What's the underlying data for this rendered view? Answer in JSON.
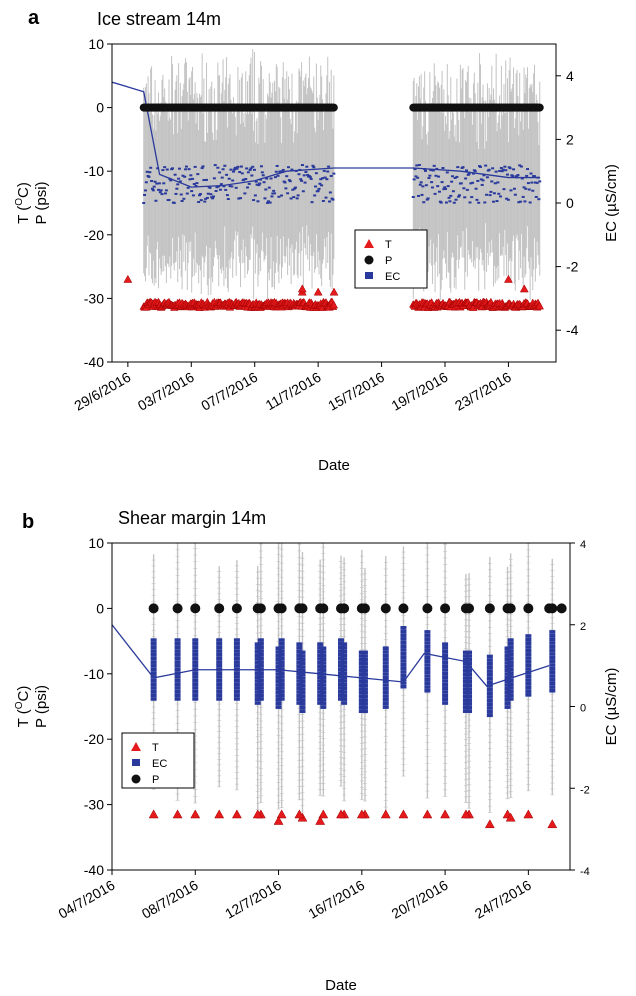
{
  "chart_data": [
    {
      "panel": "a",
      "title": "Ice stream 14m",
      "type": "scatter",
      "xlabel": "Date",
      "ylabel_line1": "T (°C)",
      "ylabel_line2": "P (psi)",
      "ylabel_t_main": "T (",
      "ylabel_t_sup": "O",
      "ylabel_t_end": "C)",
      "y2label": "EC (µS/cm)",
      "ylim": [
        -40,
        10
      ],
      "y2lim": [
        -5,
        5
      ],
      "yticks": [
        "10",
        "0",
        "-10",
        "-20",
        "-30",
        "-40"
      ],
      "y2ticks": [
        "4",
        "2",
        "0",
        "-2",
        "-4"
      ],
      "xticks": [
        "29/6/2016",
        "03/7/2016",
        "07/7/2016",
        "11/7/2016",
        "15/7/2016",
        "19/7/2016",
        "23/7/2016"
      ],
      "xrange": [
        "28/6/2016",
        "26/7/2016"
      ],
      "legend_position": "center-right",
      "legend": [
        {
          "label": "T",
          "marker": "triangle",
          "color": "#e41a1c"
        },
        {
          "label": "P",
          "marker": "circle",
          "color": "#111111"
        },
        {
          "label": "EC",
          "marker": "square",
          "color": "#2a3a9c"
        }
      ],
      "colors": {
        "T": "#e41a1c",
        "P": "#111111",
        "EC": "#2a3a9c",
        "error_bars": "#c3c3c3",
        "trend": "#2a3a9c"
      },
      "segments": [
        {
          "start": "30/6/2016",
          "end": "12/7/2016",
          "T": -31.0,
          "P": 0,
          "EC_mean": 0.6
        },
        {
          "start": "17/7/2016",
          "end": "25/7/2016",
          "T": -31.0,
          "P": 0,
          "EC_mean": 0.6
        }
      ],
      "ec_trend": {
        "x": [
          "28/6/2016",
          "30/6/2016",
          "1/7/2016",
          "3/7/2016",
          "5/7/2016",
          "7/7/2016",
          "9/7/2016",
          "12/7/2016",
          "17/7/2016",
          "20/7/2016",
          "23/7/2016",
          "25/7/2016"
        ],
        "y": [
          3.8,
          3.5,
          0.9,
          0.5,
          0.55,
          0.7,
          1.0,
          1.1,
          1.1,
          1.0,
          0.8,
          0.8
        ]
      },
      "T_outliers": [
        {
          "x": "29/6/2016",
          "y": -27
        },
        {
          "x": "10/7/2016",
          "y": -29
        },
        {
          "x": "10/7/2016",
          "y": -28.5
        },
        {
          "x": "11/7/2016",
          "y": -29
        },
        {
          "x": "12/7/2016",
          "y": -29
        },
        {
          "x": "23/7/2016",
          "y": -27
        },
        {
          "x": "24/7/2016",
          "y": -28.5
        }
      ]
    },
    {
      "panel": "b",
      "title": "Shear margin 14m",
      "type": "scatter",
      "xlabel": "Date",
      "ylabel_line1": "T (°C)",
      "ylabel_line2": "P (psi)",
      "ylabel_t_main": "T (",
      "ylabel_t_sup": "O",
      "ylabel_t_end": "C)",
      "y2label": "EC (µS/cm)",
      "ylim": [
        -40,
        10
      ],
      "y2lim": [
        -4,
        4
      ],
      "yticks": [
        "10",
        "0",
        "-10",
        "-20",
        "-30",
        "-40"
      ],
      "y2ticks": [
        "4",
        "2",
        "0",
        "-2",
        "-4"
      ],
      "xticks": [
        "04/7/2016",
        "08/7/2016",
        "12/7/2016",
        "16/7/2016",
        "20/7/2016",
        "24/7/2016"
      ],
      "xrange": [
        "4/7/2016",
        "26/7/2016"
      ],
      "legend_position": "left",
      "legend": [
        {
          "label": "T",
          "marker": "triangle",
          "color": "#e41a1c"
        },
        {
          "label": "EC",
          "marker": "square",
          "color": "#2a3a9c"
        },
        {
          "label": "P",
          "marker": "circle",
          "color": "#111111"
        }
      ],
      "colors": {
        "T": "#e41a1c",
        "P": "#111111",
        "EC": "#2a3a9c",
        "error_bars": "#c3c3c3",
        "trend": "#2a3a9c"
      },
      "samples": {
        "days": [
          "6/7",
          "7/7",
          "8/7",
          "9/7",
          "10/7",
          "11/7",
          "11/7",
          "12/7",
          "12/7",
          "13/7",
          "13/7",
          "14/7",
          "14/7",
          "15/7",
          "15/7",
          "16/7",
          "16/7",
          "17/7",
          "18/7",
          "19/7",
          "20/7",
          "21/7",
          "21/7",
          "22/7",
          "23/7",
          "23/7",
          "24/7",
          "25/7"
        ],
        "T": [
          -31.5,
          -31.5,
          -31.5,
          -31.5,
          -31.5,
          -31.5,
          -31.5,
          -31.5,
          -32.5,
          -32,
          -31.5,
          -31.5,
          -32.5,
          -31.5,
          -31.5,
          -31.5,
          -31.5,
          -31.5,
          -31.5,
          -31.5,
          -31.5,
          -31.5,
          -31.5,
          -33,
          -31.5,
          -32,
          -31.5,
          -33
        ],
        "P": [
          0,
          0,
          0,
          0,
          0,
          0,
          0,
          0,
          0,
          0,
          0,
          0,
          0,
          0,
          0,
          0,
          0,
          0,
          0,
          0,
          0,
          0,
          0,
          0,
          0,
          0,
          0,
          0
        ],
        "EC": [
          0.9,
          0.9,
          0.9,
          0.9,
          0.9,
          0.9,
          0.8,
          0.9,
          0.7,
          0.6,
          0.8,
          0.7,
          0.8,
          0.8,
          0.9,
          0.6,
          0.6,
          0.7,
          1.2,
          1.1,
          0.8,
          0.6,
          0.6,
          0.5,
          0.7,
          0.9,
          1.0,
          1.1
        ]
      },
      "ec_trend": {
        "x": [
          "4/7/2016",
          "6/7/2016",
          "8/7/2016",
          "12/7/2016",
          "14/7/2016",
          "16/7/2016",
          "18/7/2016",
          "19/7/2016",
          "21/7/2016",
          "22/7/2016",
          "25/7/2016"
        ],
        "y": [
          2.0,
          0.7,
          0.9,
          0.9,
          0.8,
          0.7,
          0.6,
          1.3,
          1.1,
          0.5,
          1.0
        ]
      }
    }
  ]
}
